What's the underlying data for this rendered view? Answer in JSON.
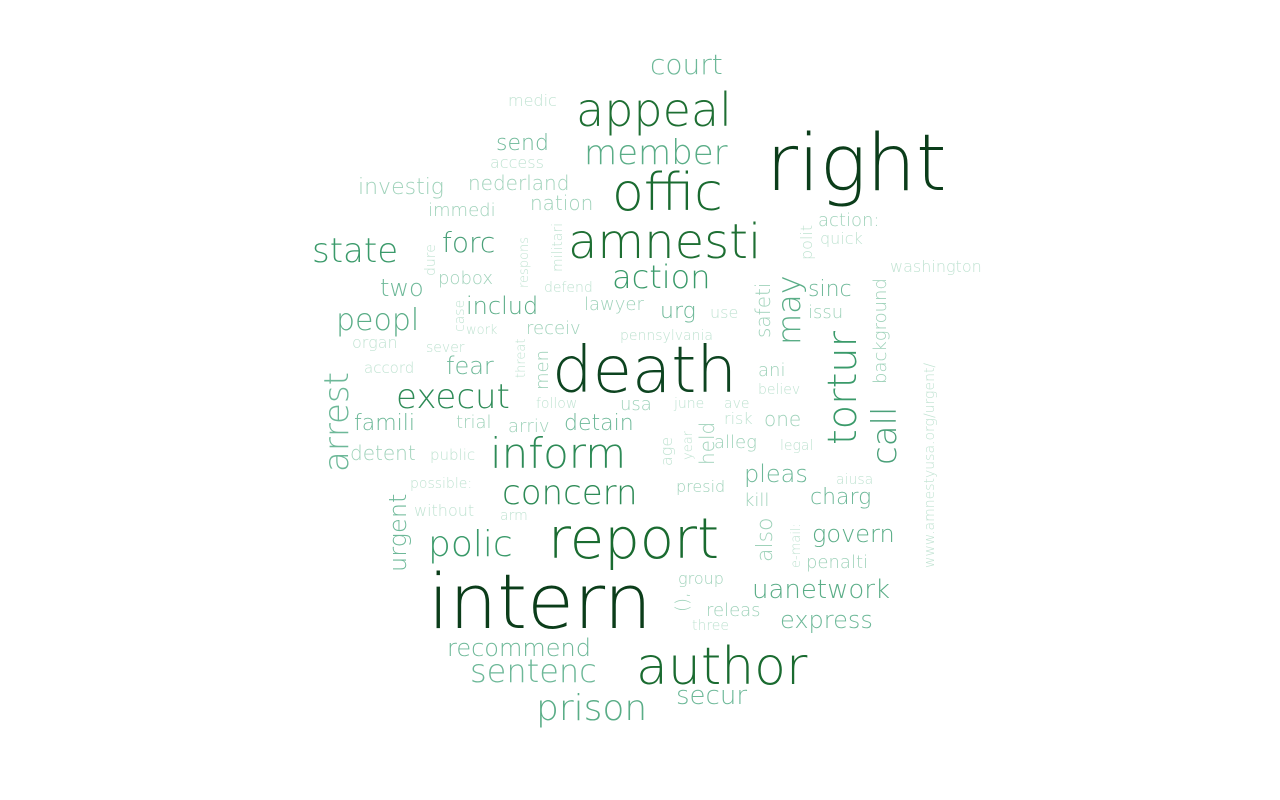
{
  "word_cloud": {
    "words": [
      {
        "text": "right",
        "weight": 1.0,
        "color": "#0b3d1a"
      },
      {
        "text": "intern",
        "weight": 0.96,
        "color": "#0b3d1a"
      },
      {
        "text": "death",
        "weight": 0.92,
        "color": "#0d4420"
      },
      {
        "text": "report",
        "weight": 0.9,
        "color": "#1a6b30"
      },
      {
        "text": "author",
        "weight": 0.86,
        "color": "#1a6b30"
      },
      {
        "text": "offic",
        "weight": 0.84,
        "color": "#1a6b30"
      },
      {
        "text": "amnesti",
        "weight": 0.82,
        "color": "#1e6f33"
      },
      {
        "text": "appeal",
        "weight": 0.8,
        "color": "#1e6f33"
      },
      {
        "text": "inform",
        "weight": 0.78,
        "color": "#2e8b57"
      },
      {
        "text": "execut",
        "weight": 0.7,
        "color": "#2e8b57"
      },
      {
        "text": "concern",
        "weight": 0.66,
        "color": "#2e8b57"
      },
      {
        "text": "polic",
        "weight": 0.68,
        "color": "#3a9a6a"
      },
      {
        "text": "tortur",
        "weight": 0.64,
        "color": "#3a9a6a"
      },
      {
        "text": "state",
        "weight": 0.6,
        "color": "#3a9a6a"
      },
      {
        "text": "prison",
        "weight": 0.62,
        "color": "#5aad87"
      },
      {
        "text": "member",
        "weight": 0.6,
        "color": "#5aad87"
      },
      {
        "text": "action",
        "weight": 0.56,
        "color": "#3a9a6a"
      },
      {
        "text": "call",
        "weight": 0.58,
        "color": "#4aa079"
      },
      {
        "text": "peopl",
        "weight": 0.55,
        "color": "#5aad87"
      },
      {
        "text": "arrest",
        "weight": 0.6,
        "color": "#6db898"
      },
      {
        "text": "forc",
        "weight": 0.5,
        "color": "#4aa079"
      },
      {
        "text": "may",
        "weight": 0.55,
        "color": "#5aad87"
      },
      {
        "text": "sentenc",
        "weight": 0.55,
        "color": "#6db898"
      },
      {
        "text": "court",
        "weight": 0.5,
        "color": "#6db898"
      },
      {
        "text": "uanetwork",
        "weight": 0.5,
        "color": "#5aad87"
      },
      {
        "text": "secur",
        "weight": 0.48,
        "color": "#6db898"
      },
      {
        "text": "express",
        "weight": 0.46,
        "color": "#6db898"
      },
      {
        "text": "govern",
        "weight": 0.46,
        "color": "#5aad87"
      },
      {
        "text": "recommend",
        "weight": 0.44,
        "color": "#6db898"
      },
      {
        "text": "urgent",
        "weight": 0.45,
        "color": "#6db898"
      },
      {
        "text": "includ",
        "weight": 0.42,
        "color": "#5aad87"
      },
      {
        "text": "fear",
        "weight": 0.42,
        "color": "#6db898"
      },
      {
        "text": "send",
        "weight": 0.42,
        "color": "#6db898"
      },
      {
        "text": "two",
        "weight": 0.42,
        "color": "#6db898"
      },
      {
        "text": "famili",
        "weight": 0.42,
        "color": "#6db898"
      },
      {
        "text": "pleas",
        "weight": 0.42,
        "color": "#6db898"
      },
      {
        "text": "detain",
        "weight": 0.38,
        "color": "#6db898"
      },
      {
        "text": "urg",
        "weight": 0.38,
        "color": "#6db898"
      },
      {
        "text": "sinc",
        "weight": 0.38,
        "color": "#6db898"
      },
      {
        "text": "charg",
        "weight": 0.36,
        "color": "#6db898"
      },
      {
        "text": "nederland",
        "weight": 0.36,
        "color": "#9fd2ba"
      },
      {
        "text": "investig",
        "weight": 0.36,
        "color": "#9fd2ba"
      },
      {
        "text": "detent",
        "weight": 0.36,
        "color": "#9fd2ba"
      },
      {
        "text": "safeti",
        "weight": 0.36,
        "color": "#9fd2ba"
      },
      {
        "text": "also",
        "weight": 0.36,
        "color": "#9fd2ba"
      },
      {
        "text": "nation",
        "weight": 0.33,
        "color": "#9fd2ba"
      },
      {
        "text": "background",
        "weight": 0.33,
        "color": "#9fd2ba"
      },
      {
        "text": "pobox",
        "weight": 0.33,
        "color": "#9fd2ba"
      },
      {
        "text": "ani",
        "weight": 0.32,
        "color": "#9fd2ba"
      },
      {
        "text": "action:",
        "weight": 0.33,
        "color": "#9fd2ba"
      },
      {
        "text": "lawyer",
        "weight": 0.3,
        "color": "#9fd2ba"
      },
      {
        "text": "usa",
        "weight": 0.32,
        "color": "#9fd2ba"
      },
      {
        "text": "arriv",
        "weight": 0.3,
        "color": "#9fd2ba"
      },
      {
        "text": "trial",
        "weight": 0.3,
        "color": "#9fd2ba"
      },
      {
        "text": "held",
        "weight": 0.32,
        "color": "#9fd2ba"
      },
      {
        "text": "one",
        "weight": 0.32,
        "color": "#9fd2ba"
      },
      {
        "text": "issu",
        "weight": 0.32,
        "color": "#9fd2ba"
      },
      {
        "text": "penalti",
        "weight": 0.32,
        "color": "#9fd2ba"
      },
      {
        "text": "releas",
        "weight": 0.32,
        "color": "#9fd2ba"
      },
      {
        "text": "men",
        "weight": 0.32,
        "color": "#9fd2ba"
      },
      {
        "text": "alleg",
        "weight": 0.3,
        "color": "#9fd2ba"
      },
      {
        "text": "receiv",
        "weight": 0.3,
        "color": "#9fd2ba"
      },
      {
        "text": "immedi",
        "weight": 0.3,
        "color": "#9fd2ba"
      },
      {
        "text": "presid",
        "weight": 0.28,
        "color": "#9fd2ba"
      },
      {
        "text": "group",
        "weight": 0.28,
        "color": "#9fd2ba"
      },
      {
        "text": "kill",
        "weight": 0.3,
        "color": "#9fd2ba"
      },
      {
        "text": "(),",
        "weight": 0.3,
        "color": "#9fd2ba"
      },
      {
        "text": "www.amnestyusa.org/urgent/",
        "weight": 0.24,
        "color": "#c0e3d2"
      },
      {
        "text": "washington",
        "weight": 0.24,
        "color": "#c0e3d2"
      },
      {
        "text": "medic",
        "weight": 0.24,
        "color": "#c0e3d2"
      },
      {
        "text": "access",
        "weight": 0.24,
        "color": "#c0e3d2"
      },
      {
        "text": "quick",
        "weight": 0.24,
        "color": "#c0e3d2"
      },
      {
        "text": "polit",
        "weight": 0.24,
        "color": "#c0e3d2"
      },
      {
        "text": "use",
        "weight": 0.26,
        "color": "#c0e3d2"
      },
      {
        "text": "militari",
        "weight": 0.24,
        "color": "#c0e3d2"
      },
      {
        "text": "dure",
        "weight": 0.24,
        "color": "#c0e3d2"
      },
      {
        "text": "respons",
        "weight": 0.22,
        "color": "#c0e3d2"
      },
      {
        "text": "defend",
        "weight": 0.24,
        "color": "#c0e3d2"
      },
      {
        "text": "case",
        "weight": 0.24,
        "color": "#c0e3d2"
      },
      {
        "text": "work",
        "weight": 0.22,
        "color": "#c0e3d2"
      },
      {
        "text": "threat",
        "weight": 0.22,
        "color": "#c0e3d2"
      },
      {
        "text": "organ",
        "weight": 0.26,
        "color": "#c0e3d2"
      },
      {
        "text": "sever",
        "weight": 0.24,
        "color": "#c0e3d2"
      },
      {
        "text": "pennsylvania",
        "weight": 0.24,
        "color": "#c0e3d2"
      },
      {
        "text": "accord",
        "weight": 0.24,
        "color": "#c0e3d2"
      },
      {
        "text": "follow",
        "weight": 0.24,
        "color": "#c0e3d2"
      },
      {
        "text": "june",
        "weight": 0.24,
        "color": "#c0e3d2"
      },
      {
        "text": "ave",
        "weight": 0.24,
        "color": "#c0e3d2"
      },
      {
        "text": "believ",
        "weight": 0.24,
        "color": "#c0e3d2"
      },
      {
        "text": "risk",
        "weight": 0.26,
        "color": "#c0e3d2"
      },
      {
        "text": "age",
        "weight": 0.24,
        "color": "#c0e3d2"
      },
      {
        "text": "year",
        "weight": 0.22,
        "color": "#c0e3d2"
      },
      {
        "text": "legal",
        "weight": 0.22,
        "color": "#c0e3d2"
      },
      {
        "text": "public",
        "weight": 0.24,
        "color": "#c0e3d2"
      },
      {
        "text": "possible:",
        "weight": 0.24,
        "color": "#c0e3d2"
      },
      {
        "text": "aiusa",
        "weight": 0.24,
        "color": "#c0e3d2"
      },
      {
        "text": "without",
        "weight": 0.26,
        "color": "#c0e3d2"
      },
      {
        "text": "arm",
        "weight": 0.24,
        "color": "#c0e3d2"
      },
      {
        "text": "e-mail:",
        "weight": 0.22,
        "color": "#c0e3d2"
      },
      {
        "text": "three",
        "weight": 0.24,
        "color": "#c0e3d2"
      }
    ]
  }
}
